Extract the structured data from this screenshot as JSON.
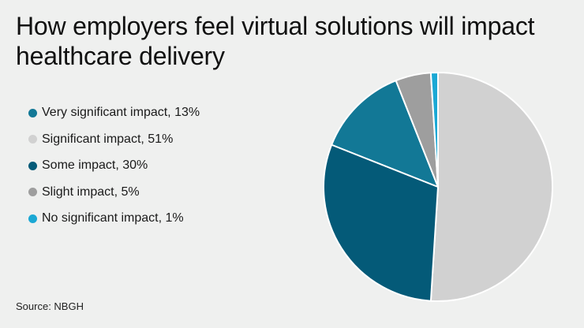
{
  "title": "How employers feel virtual solutions will impact healthcare delivery",
  "source": "Source: NBGH",
  "chart_data": {
    "type": "pie",
    "title": "How employers feel virtual solutions will impact healthcare delivery",
    "legend_position": "left",
    "slices": [
      {
        "label": "Very significant impact, 13%",
        "name": "Very significant impact",
        "value": 13,
        "color": "#127896"
      },
      {
        "label": "Significant impact, 51%",
        "name": "Significant impact",
        "value": 51,
        "color": "#d1d1d1"
      },
      {
        "label": "Some impact, 30%",
        "name": "Some impact",
        "value": 30,
        "color": "#045a78"
      },
      {
        "label": "Slight impact, 5%",
        "name": "Slight impact",
        "value": 5,
        "color": "#9e9e9e"
      },
      {
        "label": "No significant impact, 1%",
        "name": "No significant impact",
        "value": 1,
        "color": "#1ba8d4"
      }
    ],
    "draw_order": [
      1,
      2,
      0,
      3,
      4
    ]
  }
}
